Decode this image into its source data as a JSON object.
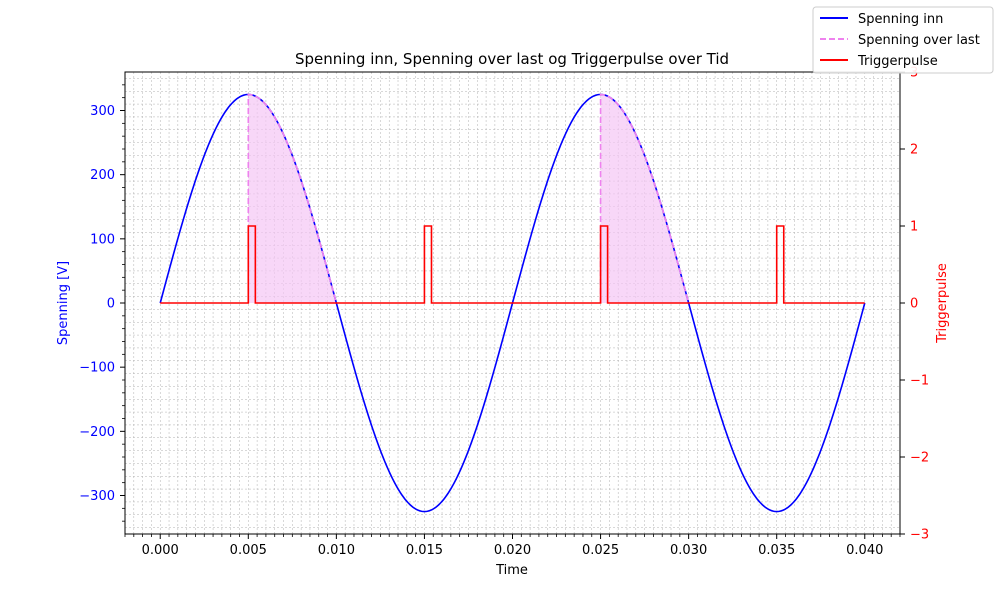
{
  "chart_data": {
    "type": "line",
    "title": "Spenning inn, Spenning over last og Triggerpulse over Tid",
    "xlabel": "Time",
    "ylabel_left": "Spenning [V]",
    "ylabel_right": "Triggerpulse",
    "xlim": [
      -0.002,
      0.042
    ],
    "ylim_left": [
      -360,
      360
    ],
    "ylim_right": [
      -3,
      3
    ],
    "x_ticks": [
      "0.000",
      "0.005",
      "0.010",
      "0.015",
      "0.020",
      "0.025",
      "0.030",
      "0.035",
      "0.040"
    ],
    "y_ticks_left": [
      "−300",
      "−200",
      "−100",
      "0",
      "100",
      "200",
      "300"
    ],
    "y_ticks_right": [
      "−3",
      "−2",
      "−1",
      "0",
      "1",
      "2",
      "3"
    ],
    "grid": true,
    "legend_position": "top-right",
    "colors": {
      "input": "#0000ff",
      "load": "#ee82ee",
      "load_fill": "#f5c6f5",
      "trigger": "#ff0000",
      "grid": "#b0b0b0"
    },
    "series": [
      {
        "name": "Spenning inn",
        "axis": "left",
        "kind": "sine",
        "amplitude": 325,
        "frequency_hz": 50,
        "x_range": [
          0,
          0.04
        ]
      },
      {
        "name": "Spenning over last",
        "axis": "left",
        "kind": "clipped-sine",
        "conduction_windows": [
          [
            0.005,
            0.01
          ],
          [
            0.025,
            0.03
          ]
        ]
      },
      {
        "name": "Triggerpulse",
        "axis": "right",
        "x": [
          0,
          0.005,
          0.005,
          0.0054,
          0.0054,
          0.015,
          0.015,
          0.0154,
          0.0154,
          0.025,
          0.025,
          0.0254,
          0.0254,
          0.035,
          0.035,
          0.0354,
          0.0354,
          0.04
        ],
        "y": [
          0,
          0,
          1,
          1,
          0,
          0,
          1,
          1,
          0,
          0,
          1,
          1,
          0,
          0,
          1,
          1,
          0,
          0
        ]
      }
    ]
  }
}
